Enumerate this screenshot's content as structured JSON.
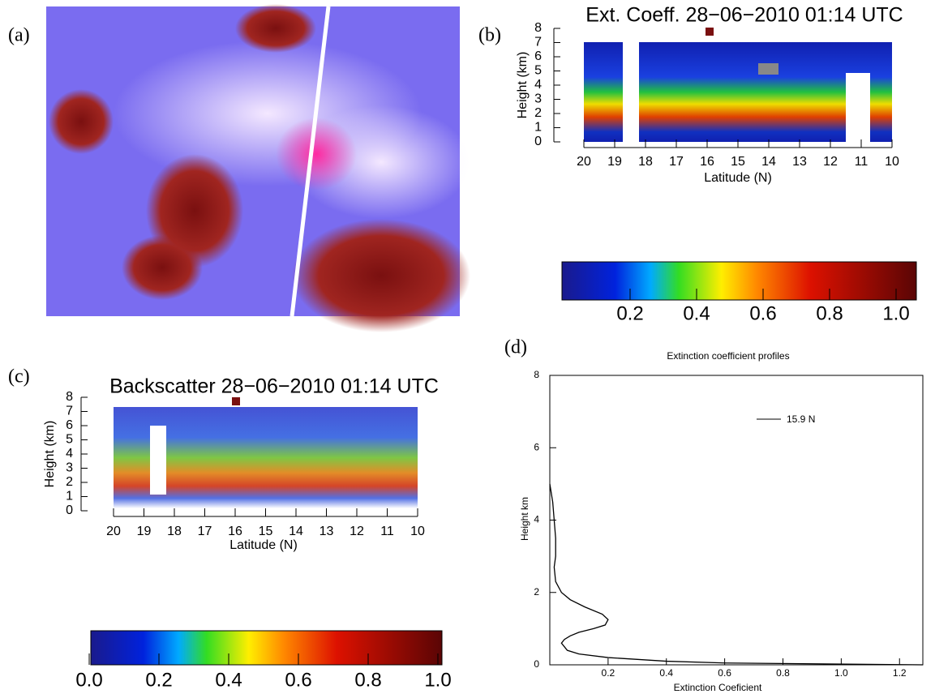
{
  "panel_labels": [
    "(a)",
    "(b)",
    "(c)",
    "(d)"
  ],
  "chart_data": [
    {
      "type": "curtain",
      "title": "Ext. Coeff. 28−06−2010 01:14 UTC",
      "xlabel": "Latitude (N)",
      "ylabel": "Height (km)",
      "xlim": [
        20,
        10
      ],
      "xticks": [
        20,
        19,
        18,
        17,
        16,
        15,
        14,
        13,
        12,
        11,
        10
      ],
      "ylim": [
        0,
        8
      ],
      "yticks": [
        0,
        1,
        2,
        3,
        4,
        5,
        6,
        7,
        8
      ],
      "colorbar": {
        "lim": [
          0,
          1
        ],
        "ticks": [
          0.2,
          0.4,
          0.6,
          0.8,
          {
            "value": 1,
            "label": "1.0"
          }
        ]
      }
    },
    {
      "type": "curtain",
      "title": "Backscatter 28−06−2010 01:14 UTC",
      "xlabel": "Latitude (N)",
      "ylabel": "Height (km)",
      "xlim": [
        20,
        10
      ],
      "xticks": [
        20,
        19,
        18,
        17,
        16,
        15,
        14,
        13,
        12,
        11,
        10
      ],
      "ylim": [
        0,
        8
      ],
      "yticks": [
        0,
        1,
        2,
        3,
        4,
        5,
        6,
        7,
        8
      ],
      "colorbar": {
        "lim": [
          0,
          1
        ],
        "ticks": [
          {
            "value": 0,
            "label": "0.0"
          },
          0.2,
          0.4,
          0.6,
          0.8,
          {
            "value": 1,
            "label": "1.0"
          }
        ]
      }
    },
    {
      "type": "line",
      "title": "Extinction coefficient profiles",
      "xlabel": "Extinction Coeficient",
      "ylabel": "Height km",
      "xlim": [
        0,
        1.28
      ],
      "xticks": [
        0.2,
        0.4,
        0.6,
        0.8,
        {
          "value": 1,
          "label": "1.0"
        },
        1.2
      ],
      "ylim": [
        0,
        8
      ],
      "yticks": [
        0,
        2,
        4,
        6,
        8
      ],
      "series": [
        {
          "name": "15.9 N",
          "color": "#000000",
          "x": [
            1.28,
            0.6,
            0.4,
            0.2,
            0.1,
            0.06,
            0.05,
            0.04,
            0.05,
            0.07,
            0.1,
            0.15,
            0.19,
            0.2,
            0.18,
            0.12,
            0.07,
            0.04,
            0.02,
            0.015,
            0.02,
            0.02,
            0.015,
            0.01,
            0
          ],
          "y": [
            0,
            0.05,
            0.1,
            0.2,
            0.3,
            0.4,
            0.5,
            0.6,
            0.7,
            0.8,
            0.9,
            1.0,
            1.1,
            1.25,
            1.4,
            1.6,
            1.8,
            2.0,
            2.3,
            2.7,
            3.0,
            3.5,
            4.0,
            4.5,
            5.0
          ]
        }
      ]
    }
  ]
}
